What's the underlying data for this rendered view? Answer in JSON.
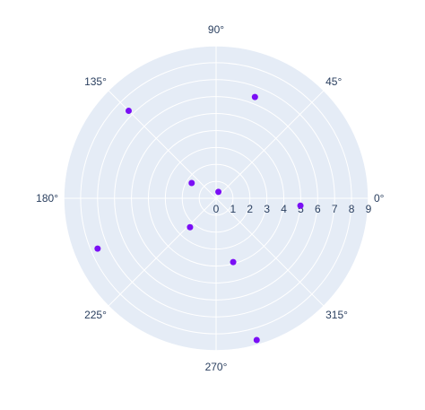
{
  "chart_data": {
    "type": "scatter",
    "subtype": "polar",
    "radial_axis": {
      "range": [
        0,
        9
      ],
      "tick_labels": [
        "0",
        "1",
        "2",
        "3",
        "4",
        "5",
        "6",
        "7",
        "8",
        "9"
      ]
    },
    "angular_axis": {
      "tick_labels": [
        "0°",
        "45°",
        "90°",
        "135°",
        "180°",
        "225°",
        "270°",
        "315°"
      ]
    },
    "grid": true,
    "series": [
      {
        "points": [
          {
            "r": 5.0,
            "theta": 355
          },
          {
            "r": 6.4,
            "theta": 69
          },
          {
            "r": 0.4,
            "theta": 70
          },
          {
            "r": 1.7,
            "theta": 148
          },
          {
            "r": 7.3,
            "theta": 135
          },
          {
            "r": 2.3,
            "theta": 228
          },
          {
            "r": 7.6,
            "theta": 203
          },
          {
            "r": 3.9,
            "theta": 285
          },
          {
            "r": 8.7,
            "theta": 286
          }
        ]
      }
    ]
  },
  "colors": {
    "plot_bg": "#e5ecf6",
    "grid": "#ffffff",
    "marker": "#7a0ef5",
    "text": "#2a3f5f",
    "paper": "#ffffff"
  }
}
